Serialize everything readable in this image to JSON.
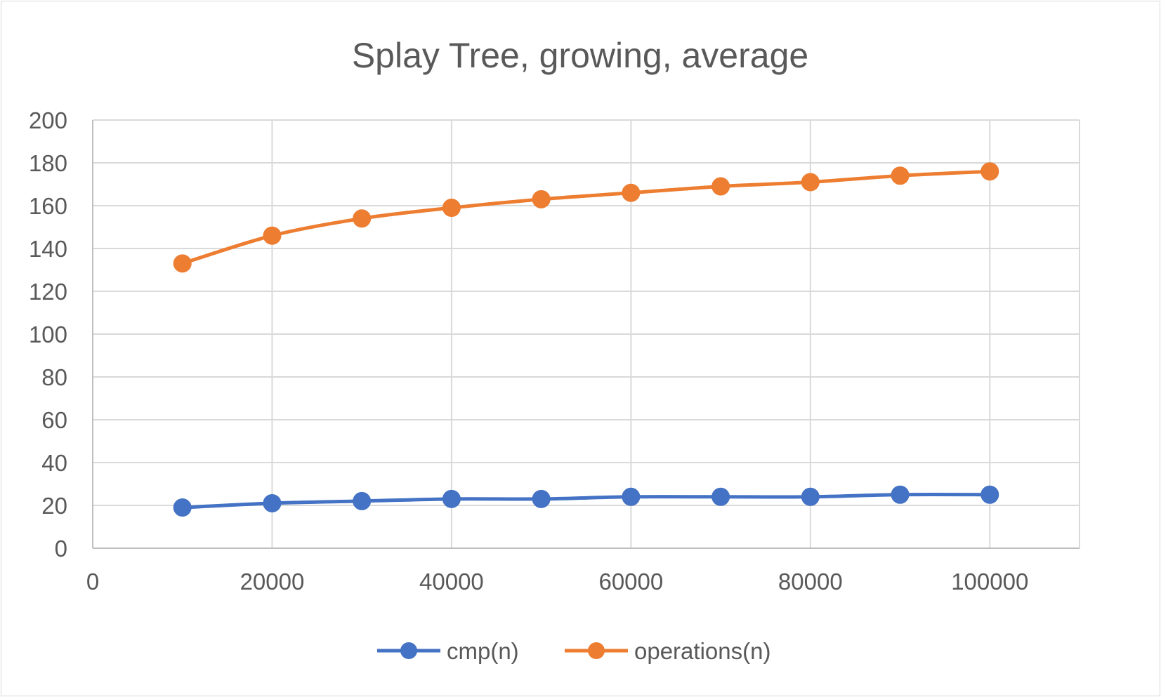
{
  "chart_data": {
    "type": "line",
    "title": "Splay Tree, growing, average",
    "xlabel": "",
    "ylabel": "",
    "xlim": [
      0,
      110000
    ],
    "ylim": [
      0,
      200
    ],
    "x_ticks": [
      0,
      20000,
      40000,
      60000,
      80000,
      100000
    ],
    "y_ticks": [
      0,
      20,
      40,
      60,
      80,
      100,
      120,
      140,
      160,
      180,
      200
    ],
    "grid": true,
    "smooth": true,
    "legend_position": "bottom",
    "x": [
      10000,
      20000,
      30000,
      40000,
      50000,
      60000,
      70000,
      80000,
      90000,
      100000
    ],
    "series": [
      {
        "name": "cmp(n)",
        "color": "#4472c4",
        "values": [
          19,
          21,
          22,
          23,
          23,
          24,
          24,
          24,
          25,
          25
        ]
      },
      {
        "name": "operations(n)",
        "color": "#ed7d31",
        "values": [
          133,
          146,
          154,
          159,
          163,
          166,
          169,
          171,
          174,
          176
        ]
      }
    ]
  }
}
